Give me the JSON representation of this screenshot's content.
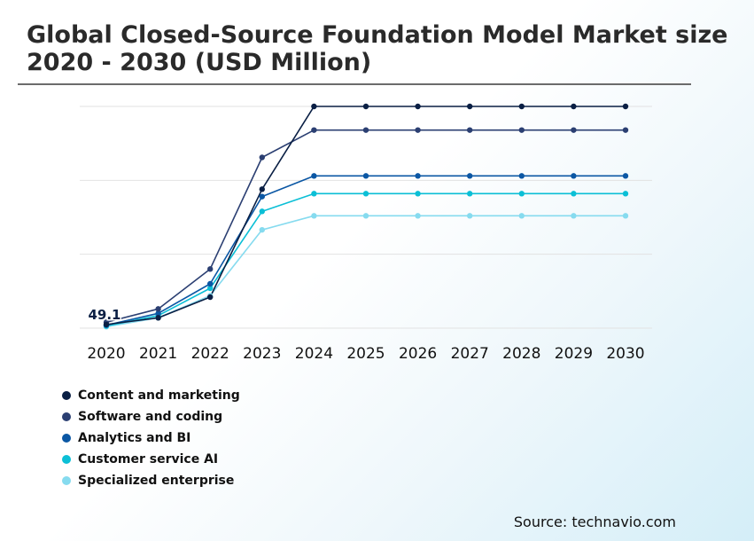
{
  "title_lines": [
    "Global Closed-Source Foundation Model Market size",
    "2020 - 2030 (USD Million)"
  ],
  "source": "Source: technavio.com",
  "chart_data": {
    "type": "line",
    "title": "Global Closed-Source Foundation Model Market size 2020 - 2030 (USD Million)",
    "xlabel": "",
    "ylabel": "",
    "categories": [
      "2020",
      "2021",
      "2022",
      "2023",
      "2024",
      "2025",
      "2026",
      "2027",
      "2028",
      "2029",
      "2030"
    ],
    "ylim": [
      0,
      3000
    ],
    "grid": true,
    "legend_placement": "bottom-left",
    "annotation": {
      "text": "49.1",
      "series_index": 0,
      "point_index": 0
    },
    "series": [
      {
        "name": "Content and marketing",
        "color": "#0a1f44",
        "values": [
          49.1,
          140,
          420,
          1880,
          3000,
          3000,
          3000,
          3000,
          3000,
          3000,
          3000
        ]
      },
      {
        "name": "Software and coding",
        "color": "#2b3f72",
        "values": [
          80,
          260,
          800,
          2310,
          2680,
          2680,
          2680,
          2680,
          2680,
          2680,
          2680
        ]
      },
      {
        "name": "Analytics and BI",
        "color": "#0b57a4",
        "values": [
          40,
          200,
          600,
          1780,
          2060,
          2060,
          2060,
          2060,
          2060,
          2060,
          2060
        ]
      },
      {
        "name": "Customer service AI",
        "color": "#0bbfd6",
        "values": [
          30,
          170,
          540,
          1580,
          1820,
          1820,
          1820,
          1820,
          1820,
          1820,
          1820
        ]
      },
      {
        "name": "Specialized enterprise",
        "color": "#86dbef",
        "values": [
          20,
          140,
          440,
          1330,
          1520,
          1520,
          1520,
          1520,
          1520,
          1520,
          1520
        ]
      }
    ]
  }
}
